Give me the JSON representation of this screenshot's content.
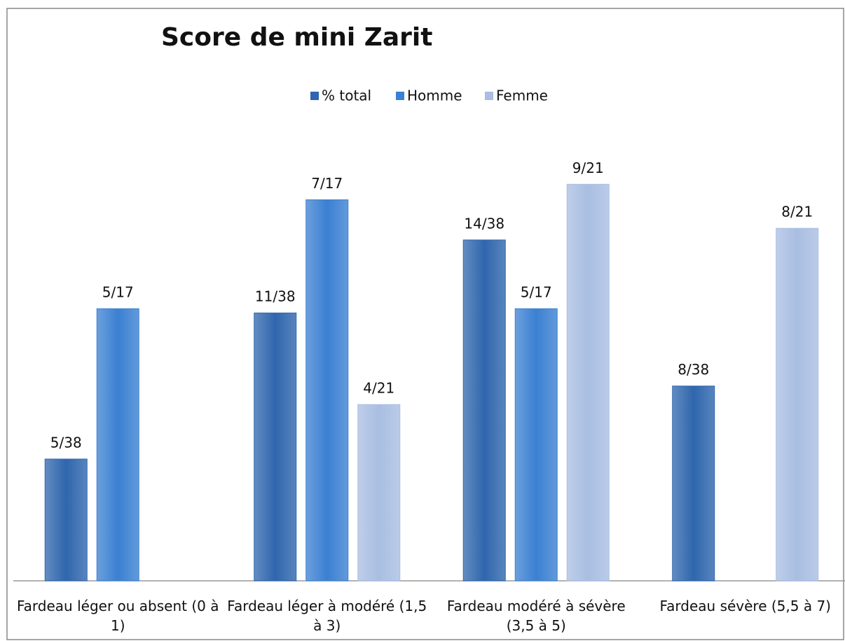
{
  "chart_data": {
    "type": "bar",
    "title": "Score de mini Zarit",
    "categories": [
      "Fardeau léger ou absent (0 à 1)",
      "Fardeau léger à modéré (1,5 à 3)",
      "Fardeau modéré à sévère (3,5 à 5)",
      "Fardeau sévère (5,5 à 7)"
    ],
    "series": [
      {
        "name": "% total",
        "color": "#2f66ad",
        "values": [
          0.1316,
          0.2895,
          0.3684,
          0.2105
        ],
        "value_labels": [
          "5/38",
          "11/38",
          "14/38",
          "8/38"
        ]
      },
      {
        "name": "Homme",
        "color": "#3b80d2",
        "values": [
          0.2941,
          0.4118,
          0.2941,
          null
        ],
        "value_labels": [
          "5/17",
          "7/17",
          "5/17",
          null
        ]
      },
      {
        "name": "Femme",
        "color": "#a9bee2",
        "values": [
          null,
          0.1905,
          0.4286,
          0.381
        ],
        "value_labels": [
          null,
          "4/21",
          "9/21",
          "8/21"
        ]
      }
    ],
    "ylim": [
      0,
      0.45
    ],
    "legend": "top"
  }
}
